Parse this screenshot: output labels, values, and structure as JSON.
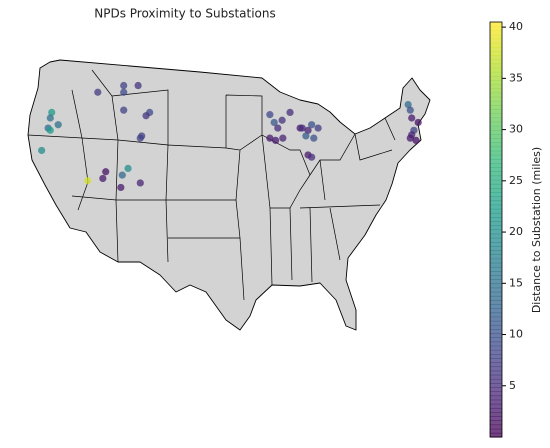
{
  "chart_data": {
    "type": "scatter",
    "title": "NPDs Proximity to Substations",
    "colorbar_label": "Distance to Substation (miles)",
    "colormap": "viridis",
    "clim": [
      0,
      40.5
    ],
    "cticks": [
      5,
      10,
      15,
      20,
      25,
      30,
      35,
      40
    ],
    "x": [
      -119.9,
      -120.1,
      -120.4,
      -119.0,
      -120.1,
      -121.3,
      -113.5,
      -109.9,
      -107.9,
      -109.9,
      -109.9,
      -106.3,
      -106.8,
      -107.4,
      -107.6,
      -114.9,
      -112.4,
      -112.8,
      -110.1,
      -109.3,
      -107.6,
      -110.3,
      -89.6,
      -89.0,
      -88.5,
      -87.9,
      -89.6,
      -88.8,
      -87.8,
      -85.4,
      -84.3,
      -83.8,
      -82.9,
      -84.6,
      -83.5,
      -85.1,
      -84.3,
      -83.8,
      -86.8,
      -70.4,
      -70.1,
      -69.9,
      -69.0,
      -69.6,
      -69.9,
      -70.1,
      -69.3
    ],
    "y": [
      44.5,
      44.0,
      43.1,
      43.4,
      42.9,
      41.1,
      46.3,
      46.9,
      46.9,
      46.3,
      44.7,
      44.5,
      44.2,
      42.4,
      42.2,
      38.4,
      39.2,
      38.6,
      38.9,
      39.5,
      38.2,
      37.8,
      44.3,
      43.6,
      43.1,
      43.8,
      42.2,
      42.0,
      42.2,
      43.1,
      42.9,
      43.4,
      43.1,
      42.4,
      42.2,
      43.1,
      40.7,
      40.5,
      44.5,
      45.2,
      44.7,
      44.0,
      43.6,
      42.9,
      42.5,
      42.2,
      42.0
    ],
    "values": [
      22,
      15,
      14,
      15,
      22,
      20,
      7,
      8,
      6,
      9,
      8,
      9,
      6,
      8,
      8,
      38,
      2,
      3,
      14,
      20,
      4,
      3,
      9,
      11,
      5,
      6,
      3,
      3,
      4,
      3,
      4,
      10,
      7,
      12,
      10,
      5,
      3,
      5,
      5,
      14,
      10,
      3,
      2,
      8,
      4,
      3,
      2
    ]
  }
}
